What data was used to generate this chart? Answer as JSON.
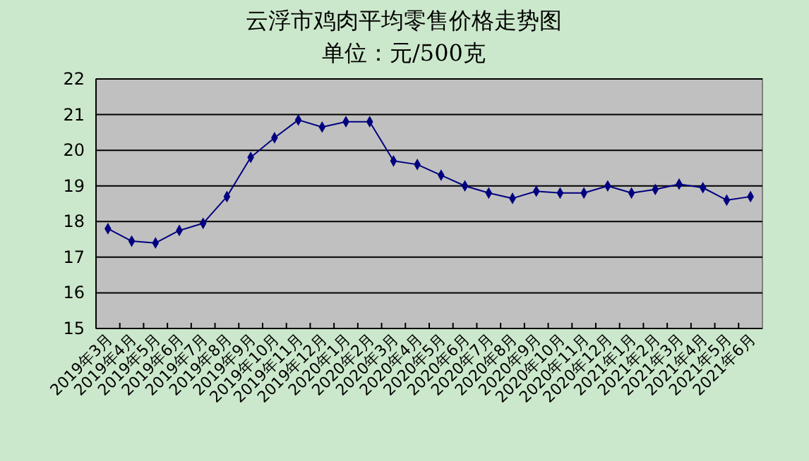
{
  "chart_data": {
    "type": "line",
    "title": "云浮市鸡肉平均零售价格走势图",
    "subtitle": "单位：元/500克",
    "categories": [
      "2019年3月",
      "2019年4月",
      "2019年5月",
      "2019年6月",
      "2019年7月",
      "2019年8月",
      "2019年9月",
      "2019年10月",
      "2019年11月",
      "2019年12月",
      "2020年1月",
      "2020年2月",
      "2020年3月",
      "2020年4月",
      "2020年5月",
      "2020年6月",
      "2020年7月",
      "2020年8月",
      "2020年9月",
      "2020年10月",
      "2020年11月",
      "2020年12月",
      "2021年1月",
      "2021年2月",
      "2021年3月",
      "2021年4月",
      "2021年5月",
      "2021年6月"
    ],
    "series": [
      {
        "color": "#000080",
        "values": [
          17.8,
          17.45,
          17.4,
          17.75,
          17.95,
          18.7,
          19.8,
          20.35,
          20.85,
          20.65,
          20.8,
          20.8,
          19.7,
          19.6,
          19.3,
          19.0,
          18.8,
          18.65,
          18.85,
          18.8,
          18.8,
          19.0,
          18.8,
          18.9,
          19.05,
          18.95,
          18.6,
          18.7
        ]
      }
    ],
    "ylim": [
      15,
      22
    ],
    "yticks": [
      15,
      16,
      17,
      18,
      19,
      20,
      21,
      22
    ],
    "grid": "y",
    "marker": "diamond",
    "line_style": "solid"
  }
}
